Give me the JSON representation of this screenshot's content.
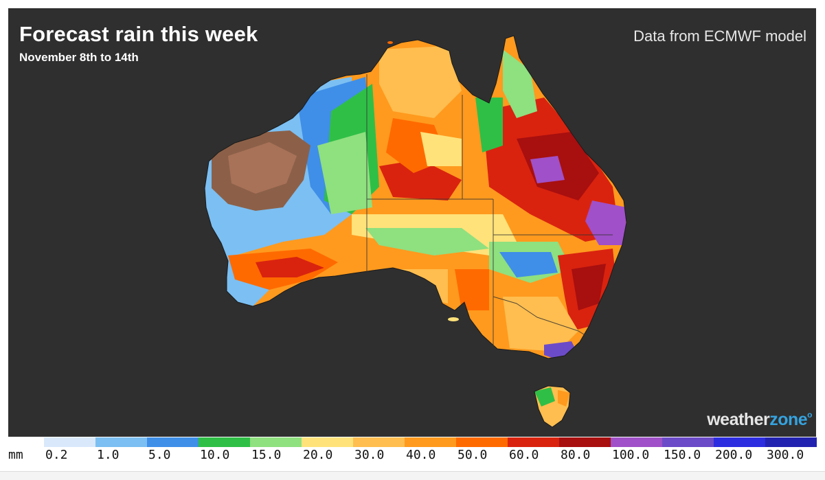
{
  "header": {
    "title": "Forecast rain this week",
    "subtitle": "November 8th to 14th",
    "source": "Data from ECMWF model"
  },
  "brand": {
    "logo_part1": "weather",
    "logo_part2": "zone",
    "logo_mark": "o"
  },
  "legend": {
    "unit": "mm",
    "labels": [
      "0.2",
      "1.0",
      "5.0",
      "10.0",
      "15.0",
      "20.0",
      "30.0",
      "40.0",
      "50.0",
      "60.0",
      "80.0",
      "100.0",
      "150.0",
      "200.0",
      "300.0"
    ],
    "colors": [
      "#d9e9fb",
      "#7cbff2",
      "#3f8fe8",
      "#2fbf47",
      "#8fe07f",
      "#ffe27a",
      "#ffbe4f",
      "#ff9a1e",
      "#ff6a00",
      "#d9230f",
      "#a80f0f",
      "#a050c8",
      "#6c4bc8",
      "#2c2ce0",
      "#2222b0"
    ]
  },
  "map": {
    "background": "#2f2f2f",
    "icons": [
      "australia-rainfall-map",
      "tasmania-rainfall-map"
    ]
  }
}
